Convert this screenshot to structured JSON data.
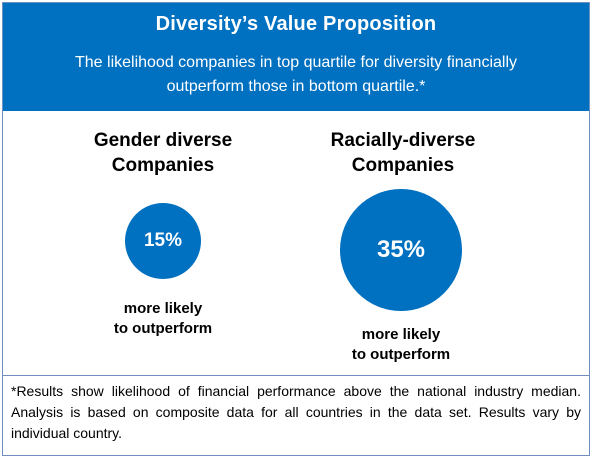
{
  "header": {
    "title": "Diversity’s Value Proposition",
    "subtitle_line1": "The likelihood companies in top quartile for diversity financially",
    "subtitle_line2": "outperform those in bottom quartile.*"
  },
  "gender": {
    "title_line1": "Gender diverse",
    "title_line2": "Companies",
    "value": "15%",
    "caption_line1": "more likely",
    "caption_line2": "to outperform"
  },
  "racial": {
    "title_line1": "Racially-diverse",
    "title_line2": "Companies",
    "value": "35%",
    "caption_line1": "more likely",
    "caption_line2": "to outperform"
  },
  "footnote": "*Results show likelihood of financial performance above the national industry median. Analysis is based on composite data for all countries in the data set. Results vary by individual country.",
  "colors": {
    "accent": "#0070c0",
    "border": "#6f8fc0"
  }
}
